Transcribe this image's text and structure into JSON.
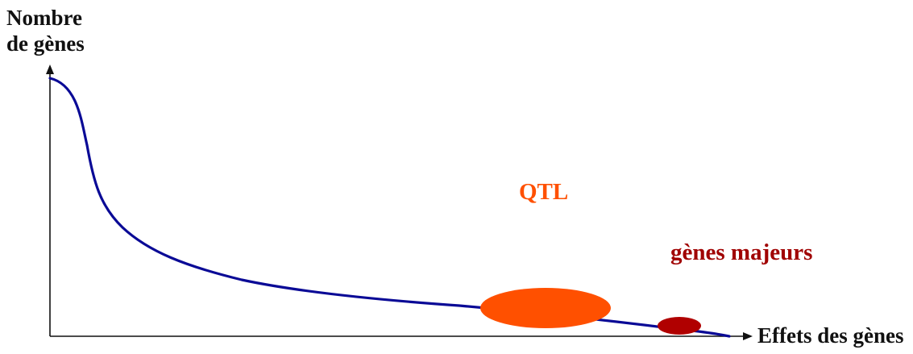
{
  "axes": {
    "y_label_line1": "Nombre",
    "y_label_line2": "de gènes",
    "x_label": "Effets des gènes"
  },
  "labels": {
    "qtl": "QTL",
    "major_genes": "gènes majeurs"
  },
  "colors": {
    "curve": "#0a0a96",
    "axis": "#111111",
    "qtl": "#ff5000",
    "major_genes": "#b00000",
    "major_genes_label": "#a00000"
  }
}
